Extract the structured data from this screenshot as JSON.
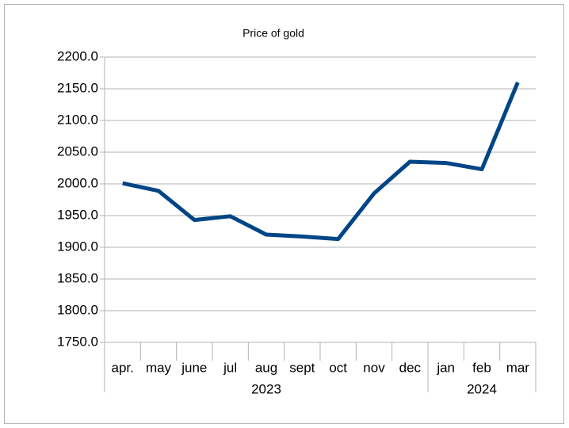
{
  "chart_data": {
    "type": "line",
    "title": "Price of gold",
    "category_groups": [
      {
        "name": "2023",
        "categories": [
          "apr.",
          "may",
          "june",
          "jul",
          "aug",
          "sept",
          "oct",
          "nov",
          "dec"
        ]
      },
      {
        "name": "2024",
        "categories": [
          "jan",
          "feb",
          "mar"
        ]
      }
    ],
    "series": [
      {
        "color": "#004586",
        "values": [
          2001,
          1989,
          1943,
          1949,
          1920,
          1917,
          1913,
          1985,
          2035,
          2033,
          2023,
          2160
        ]
      }
    ],
    "ylim": [
      1750,
      2200
    ],
    "yticks": [
      {
        "value": 1750,
        "label": "1750.0"
      },
      {
        "value": 1800,
        "label": "1800.0"
      },
      {
        "value": 1850,
        "label": "1850.0"
      },
      {
        "value": 1900,
        "label": "1900.0"
      },
      {
        "value": 1950,
        "label": "1950.0"
      },
      {
        "value": 2000,
        "label": "2000.0"
      },
      {
        "value": 2050,
        "label": "2050.0"
      },
      {
        "value": 2100,
        "label": "2100.0"
      },
      {
        "value": 2150,
        "label": "2150.0"
      },
      {
        "value": 2200,
        "label": "2200.0"
      }
    ],
    "grid": true
  }
}
